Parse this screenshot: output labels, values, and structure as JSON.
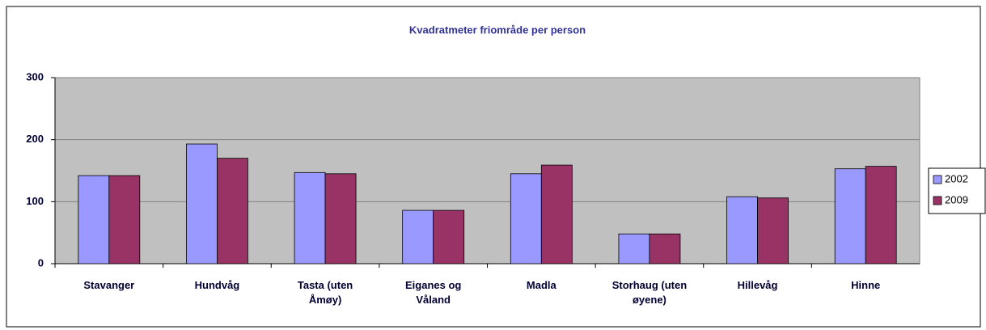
{
  "chart_data": {
    "type": "bar",
    "title": "Kvadratmeter friområde per person",
    "categories": [
      "Stavanger",
      "Hundvåg",
      "Tasta (uten Åmøy)",
      "Eiganes og Våland",
      "Madla",
      "Storhaug (uten øyene)",
      "Hillevåg",
      "Hinne"
    ],
    "series": [
      {
        "name": "2002",
        "color": "#9999ff",
        "values": [
          142,
          193,
          147,
          86,
          145,
          48,
          108,
          153
        ]
      },
      {
        "name": "2009",
        "color": "#993366",
        "values": [
          142,
          170,
          145,
          86,
          159,
          48,
          106,
          157
        ]
      }
    ],
    "ylim": [
      0,
      300
    ],
    "yticks": [
      0,
      100,
      200,
      300
    ],
    "grid": true,
    "legend": "right"
  }
}
